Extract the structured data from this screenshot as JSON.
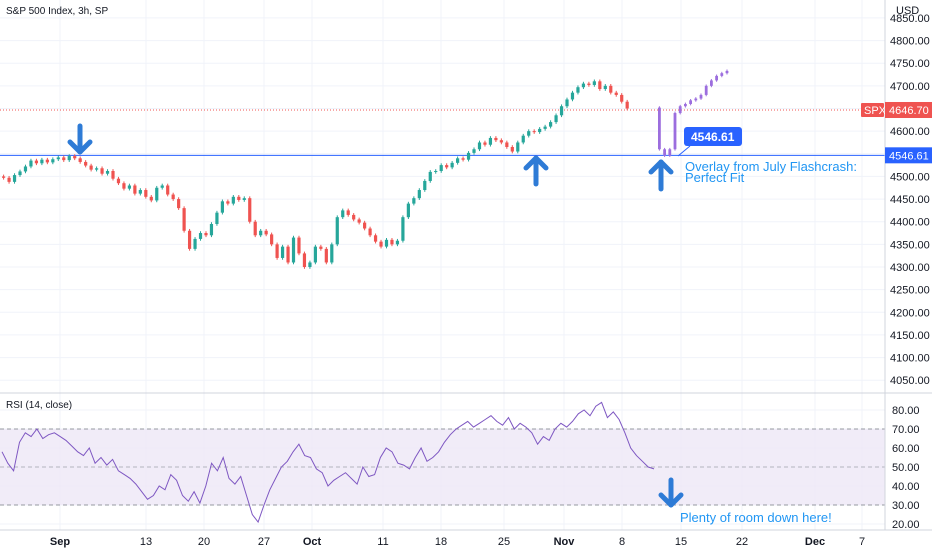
{
  "header": {
    "symbol_title": "S&P 500 Index, 3h, SP",
    "currency": "USD"
  },
  "rsi_panel": {
    "title": "RSI (14, close)"
  },
  "badges": {
    "spx_label": "SPX",
    "spx_price": "4646.70",
    "level_price": "4546.61",
    "callout_price": "4546.61"
  },
  "annotations": {
    "overlay_line1": "Overlay from July Flashcrash:",
    "overlay_line2": "Perfect Fit",
    "rsi_note": "Plenty of room down here!"
  },
  "colors": {
    "up": "#26a69a",
    "down": "#ef5350",
    "projection": "#9c6ede",
    "level_line": "#2962ff",
    "rsi_line": "#7e57c2",
    "rsi_band": "#ede7f6",
    "arrow": "#2e7bd6",
    "spx_badge": "#ef5350",
    "level_badge": "#2962ff"
  },
  "chart_data": [
    {
      "type": "candlestick",
      "title": "S&P 500 Index, 3h, SP",
      "y_axis": {
        "ticks": [
          4050,
          4100,
          4150,
          4200,
          4250,
          4300,
          4350,
          4400,
          4450,
          4500,
          4550,
          4600,
          4650,
          4700,
          4750,
          4800,
          4850
        ],
        "tick_labels": [
          "4050.00",
          "4100.00",
          "4150.00",
          "4200.00",
          "4250.00",
          "4300.00",
          "4350.00",
          "4400.00",
          "4450.00",
          "4500.00",
          "4550.00",
          "4600.00",
          "4650.00",
          "4700.00",
          "4750.00",
          "4800.00",
          "4850.00"
        ],
        "ylim": [
          4020,
          4870
        ],
        "unit": "USD"
      },
      "x_axis": {
        "tick_labels": [
          "Sep",
          "13",
          "20",
          "27",
          "Oct",
          "11",
          "18",
          "25",
          "Nov",
          "8",
          "15",
          "22",
          "Dec",
          "7"
        ],
        "bold": [
          "Sep",
          "Oct",
          "Nov",
          "Dec"
        ],
        "xlim": [
          0,
          932
        ]
      },
      "horizontal_line": 4546.61,
      "last_price": 4646.7,
      "series": [
        {
          "points": [
            [
              4500,
              4497
            ],
            [
              4497,
              4488
            ],
            [
              4488,
              4503
            ],
            [
              4503,
              4511
            ],
            [
              4511,
              4522
            ],
            [
              4522,
              4535
            ],
            [
              4535,
              4529
            ],
            [
              4529,
              4537
            ],
            [
              4537,
              4531
            ],
            [
              4531,
              4538
            ],
            [
              4538,
              4542
            ],
            [
              4542,
              4536
            ],
            [
              4536,
              4545
            ],
            [
              4545,
              4540
            ],
            [
              4540,
              4532
            ],
            [
              4532,
              4524
            ],
            [
              4524,
              4515
            ],
            [
              4515,
              4518
            ],
            [
              4518,
              4506
            ],
            [
              4506,
              4512
            ],
            [
              4512,
              4495
            ],
            [
              4495,
              4485
            ],
            [
              4485,
              4473
            ],
            [
              4473,
              4480
            ],
            [
              4480,
              4462
            ],
            [
              4462,
              4470
            ],
            [
              4470,
              4455
            ],
            [
              4455,
              4447
            ],
            [
              4447,
              4475
            ],
            [
              4475,
              4480
            ],
            [
              4480,
              4460
            ],
            [
              4460,
              4450
            ],
            [
              4450,
              4430
            ],
            [
              4430,
              4380
            ],
            [
              4380,
              4340
            ],
            [
              4340,
              4362
            ],
            [
              4362,
              4375
            ],
            [
              4375,
              4370
            ],
            [
              4370,
              4395
            ],
            [
              4395,
              4420
            ],
            [
              4420,
              4445
            ],
            [
              4445,
              4440
            ],
            [
              4440,
              4455
            ],
            [
              4455,
              4448
            ],
            [
              4448,
              4452
            ],
            [
              4452,
              4400
            ],
            [
              4400,
              4370
            ],
            [
              4370,
              4380
            ],
            [
              4380,
              4372
            ],
            [
              4372,
              4350
            ],
            [
              4350,
              4320
            ],
            [
              4320,
              4345
            ],
            [
              4345,
              4310
            ],
            [
              4310,
              4365
            ],
            [
              4365,
              4330
            ],
            [
              4330,
              4300
            ],
            [
              4300,
              4310
            ],
            [
              4310,
              4345
            ],
            [
              4345,
              4340
            ],
            [
              4340,
              4310
            ],
            [
              4310,
              4350
            ],
            [
              4350,
              4410
            ],
            [
              4410,
              4425
            ],
            [
              4425,
              4415
            ],
            [
              4415,
              4405
            ],
            [
              4405,
              4398
            ],
            [
              4398,
              4385
            ],
            [
              4385,
              4370
            ],
            [
              4370,
              4356
            ],
            [
              4356,
              4345
            ],
            [
              4345,
              4360
            ],
            [
              4360,
              4350
            ],
            [
              4350,
              4358
            ],
            [
              4358,
              4410
            ],
            [
              4410,
              4440
            ],
            [
              4440,
              4452
            ],
            [
              4452,
              4470
            ],
            [
              4470,
              4490
            ],
            [
              4490,
              4510
            ],
            [
              4510,
              4512
            ],
            [
              4512,
              4525
            ],
            [
              4525,
              4520
            ],
            [
              4520,
              4530
            ],
            [
              4530,
              4540
            ],
            [
              4540,
              4537
            ],
            [
              4537,
              4552
            ],
            [
              4552,
              4560
            ],
            [
              4560,
              4575
            ],
            [
              4575,
              4570
            ],
            [
              4570,
              4585
            ],
            [
              4585,
              4580
            ],
            [
              4580,
              4575
            ],
            [
              4575,
              4565
            ],
            [
              4565,
              4555
            ],
            [
              4555,
              4575
            ],
            [
              4575,
              4590
            ],
            [
              4590,
              4600
            ],
            [
              4600,
              4598
            ],
            [
              4598,
              4605
            ],
            [
              4605,
              4610
            ],
            [
              4610,
              4620
            ],
            [
              4620,
              4635
            ],
            [
              4635,
              4655
            ],
            [
              4655,
              4670
            ],
            [
              4670,
              4685
            ],
            [
              4685,
              4697
            ],
            [
              4697,
              4705
            ],
            [
              4705,
              4702
            ],
            [
              4702,
              4710
            ],
            [
              4710,
              4693
            ],
            [
              4693,
              4700
            ],
            [
              4700,
              4685
            ],
            [
              4685,
              4680
            ],
            [
              4680,
              4665
            ],
            [
              4665,
              4650
            ]
          ]
        },
        {
          "name": "Overlay from July Flashcrash",
          "points": [
            [
              4652,
              4560
            ],
            [
              4560,
              4546
            ],
            [
              4546,
              4560
            ],
            [
              4560,
              4640
            ],
            [
              4640,
              4655
            ],
            [
              4655,
              4660
            ],
            [
              4660,
              4668
            ],
            [
              4668,
              4672
            ],
            [
              4672,
              4680
            ],
            [
              4680,
              4700
            ],
            [
              4700,
              4712
            ],
            [
              4712,
              4722
            ],
            [
              4722,
              4728
            ],
            [
              4728,
              4733
            ]
          ]
        }
      ]
    },
    {
      "type": "line",
      "title": "RSI (14, close)",
      "y_axis": {
        "ticks": [
          20,
          30,
          40,
          50,
          60,
          70,
          80
        ],
        "tick_labels": [
          "20.00",
          "30.00",
          "40.00",
          "50.00",
          "60.00",
          "70.00",
          "80.00"
        ],
        "ylim": [
          18,
          85
        ]
      },
      "band": [
        30,
        70
      ],
      "midline": 50,
      "series": [
        {
          "values": [
            58,
            52,
            48,
            63,
            68,
            66,
            70,
            65,
            67,
            68,
            66,
            64,
            61,
            58,
            56,
            60,
            52,
            55,
            51,
            54,
            48,
            46,
            44,
            41,
            37,
            33,
            35,
            40,
            38,
            46,
            43,
            35,
            32,
            37,
            31,
            40,
            52,
            48,
            55,
            44,
            41,
            45,
            35,
            25,
            21,
            30,
            38,
            44,
            50,
            53,
            58,
            62,
            56,
            55,
            49,
            47,
            40,
            43,
            45,
            47,
            44,
            41,
            50,
            45,
            46,
            55,
            60,
            58,
            52,
            51,
            49,
            55,
            60,
            53,
            55,
            58,
            63,
            67,
            70,
            72,
            74,
            71,
            73,
            75,
            77,
            74,
            72,
            76,
            70,
            73,
            71,
            68,
            62,
            66,
            64,
            70,
            73,
            71,
            74,
            78,
            80,
            77,
            82,
            84,
            76,
            79,
            75,
            68,
            60,
            56,
            53,
            50,
            49
          ]
        }
      ]
    }
  ]
}
